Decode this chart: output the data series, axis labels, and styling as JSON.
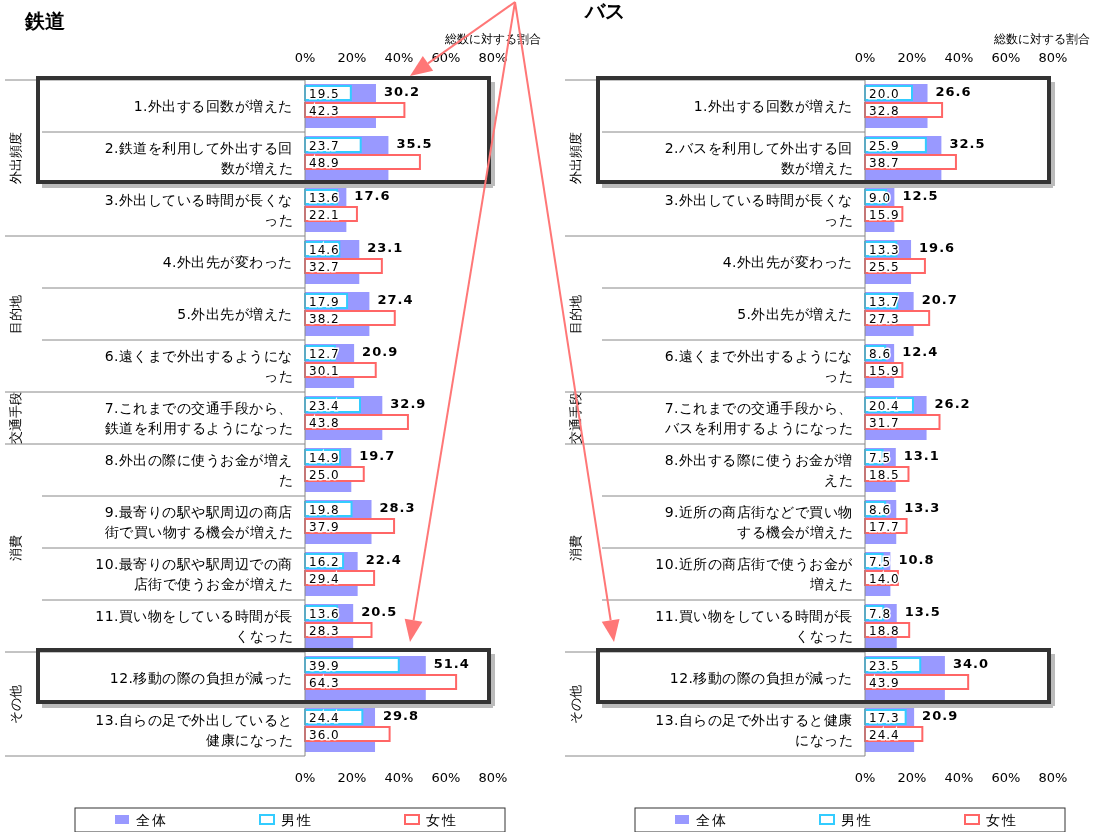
{
  "chart_data": [
    {
      "type": "bar",
      "orientation": "horizontal",
      "title": "鉄道",
      "x2label": "総数に対する割合",
      "categories": [
        "1.外出する回数が増えた",
        "2.鉄道を利用して外出する回数が増えた",
        "3.外出している時間が長くなった",
        "4.外出先が変わった",
        "5.外出先が増えた",
        "6.遠くまで外出するようになった",
        "7.これまでの交通手段から、鉄道を利用するようになった",
        "8.外出の際に使うお金が増えた",
        "9.最寄りの駅や駅周辺の商店街で買い物する機会が増えた",
        "10.最寄りの駅や駅周辺での商店街で使うお金が増えた",
        "11.買い物をしている時間が長くなった",
        "12.移動の際の負担が減った",
        "13.自らの足で外出していると健康になった"
      ],
      "series": [
        {
          "name": "全体",
          "color": "#9999ff",
          "values": [
            30.2,
            35.5,
            17.6,
            23.1,
            27.4,
            20.9,
            32.9,
            19.7,
            28.3,
            22.4,
            20.5,
            51.4,
            29.8
          ],
          "value_labels": [
            "30.2",
            "35.5",
            "17.6",
            "23.1",
            "27.4",
            "20.9",
            "32.9",
            "19.7",
            "28.3",
            "22.4",
            "20.5",
            "51.4",
            "29.8"
          ]
        },
        {
          "name": "男性",
          "color": "#33ccff",
          "values": [
            19.5,
            23.7,
            13.6,
            14.6,
            17.9,
            12.7,
            23.4,
            14.9,
            19.8,
            16.2,
            13.6,
            39.9,
            24.4
          ],
          "value_labels": [
            "19.5",
            "23.7",
            "13.6",
            "14.6",
            "17.9",
            "12.7",
            "23.4",
            "14.9",
            "19.8",
            "16.2",
            "13.6",
            "39.9",
            "24.4"
          ]
        },
        {
          "name": "女性",
          "color": "#ff6666",
          "values": [
            42.3,
            48.9,
            22.1,
            32.7,
            38.2,
            30.1,
            43.8,
            25.0,
            37.9,
            29.4,
            28.3,
            64.3,
            36.0
          ],
          "value_labels": [
            "42.3",
            "48.9",
            "22.1",
            "32.7",
            "38.2",
            "30.1",
            "43.8",
            "25.0",
            "37.9",
            "29.4",
            "28.3",
            "64.3",
            "36.0"
          ]
        }
      ],
      "xlim": [
        0,
        80
      ],
      "xticks": [
        {
          "value": 0,
          "label": "0%"
        },
        {
          "value": 20,
          "label": "20%"
        },
        {
          "value": 40,
          "label": "40%"
        },
        {
          "value": 60,
          "label": "60%"
        },
        {
          "value": 80,
          "label": "80%"
        }
      ],
      "x2lim": [
        0,
        80
      ],
      "x2ticks": [
        {
          "value": 0,
          "label": "0%"
        },
        {
          "value": 20,
          "label": "20%"
        },
        {
          "value": 40,
          "label": "40%"
        },
        {
          "value": 60,
          "label": "60%"
        },
        {
          "value": 80,
          "label": "80%"
        }
      ],
      "annotations": [
        "外出頻度",
        "目的地",
        "交通手段",
        "消費",
        "その他"
      ],
      "legend": "bottom",
      "grid": false
    },
    {
      "type": "bar",
      "orientation": "horizontal",
      "title": "バス",
      "x2label": "総数に対する割合",
      "categories": [
        "1.外出する回数が増えた",
        "2.バスを利用して外出する回数が増えた",
        "3.外出している時間が長くなった",
        "4.外出先が変わった",
        "5.外出先が増えた",
        "6.遠くまで外出するようになった",
        "7.これまでの交通手段から、バスを利用するようになった",
        "8.外出する際に使うお金が増えた",
        "9.近所の商店街などで買い物する機会が増えた",
        "10.近所の商店街で使うお金が増えた",
        "11.買い物をしている時間が長くなった",
        "12.移動の際の負担が減った",
        "13.自らの足で外出すると健康になった"
      ],
      "series": [
        {
          "name": "全体",
          "color": "#9999ff",
          "values": [
            26.6,
            32.5,
            12.5,
            19.6,
            20.7,
            12.4,
            26.2,
            13.1,
            13.3,
            10.8,
            13.5,
            34.0,
            20.9
          ],
          "value_labels": [
            "26.6",
            "32.5",
            "12.5",
            "19.6",
            "20.7",
            "12.4",
            "26.2",
            "13.1",
            "13.3",
            "10.8",
            "13.5",
            "34.0",
            "20.9"
          ]
        },
        {
          "name": "男性",
          "color": "#33ccff",
          "values": [
            20.0,
            25.9,
            9.0,
            13.3,
            13.7,
            8.6,
            20.4,
            7.5,
            8.6,
            7.5,
            7.8,
            23.5,
            17.3
          ],
          "value_labels": [
            "20.0",
            "25.9",
            "9.0",
            "13.3",
            "13.7",
            "8.6",
            "20.4",
            "7.5",
            "8.6",
            "7.5",
            "7.8",
            "23.5",
            "17.3"
          ]
        },
        {
          "name": "女性",
          "color": "#ff6666",
          "values": [
            32.8,
            38.7,
            15.9,
            25.5,
            27.3,
            15.9,
            31.7,
            18.5,
            17.7,
            14.0,
            18.8,
            43.9,
            24.4
          ],
          "value_labels": [
            "32.8",
            "38.7",
            "15.9",
            "25.5",
            "27.3",
            "15.9",
            "31.7",
            "18.5",
            "17.7",
            "14.0",
            "18.8",
            "43.9",
            "24.4"
          ]
        }
      ],
      "xlim": [
        0,
        80
      ],
      "xticks": [
        {
          "value": 0,
          "label": "0%"
        },
        {
          "value": 20,
          "label": "20%"
        },
        {
          "value": 40,
          "label": "40%"
        },
        {
          "value": 60,
          "label": "60%"
        },
        {
          "value": 80,
          "label": "80%"
        }
      ],
      "x2lim": [
        0,
        80
      ],
      "x2ticks": [
        {
          "value": 0,
          "label": "0%"
        },
        {
          "value": 20,
          "label": "20%"
        },
        {
          "value": 40,
          "label": "40%"
        },
        {
          "value": 60,
          "label": "60%"
        },
        {
          "value": 80,
          "label": "80%"
        }
      ],
      "annotations": [
        "外出頻度",
        "目的地",
        "交通手段",
        "消費",
        "その他"
      ],
      "legend": "bottom",
      "grid": false
    }
  ]
}
